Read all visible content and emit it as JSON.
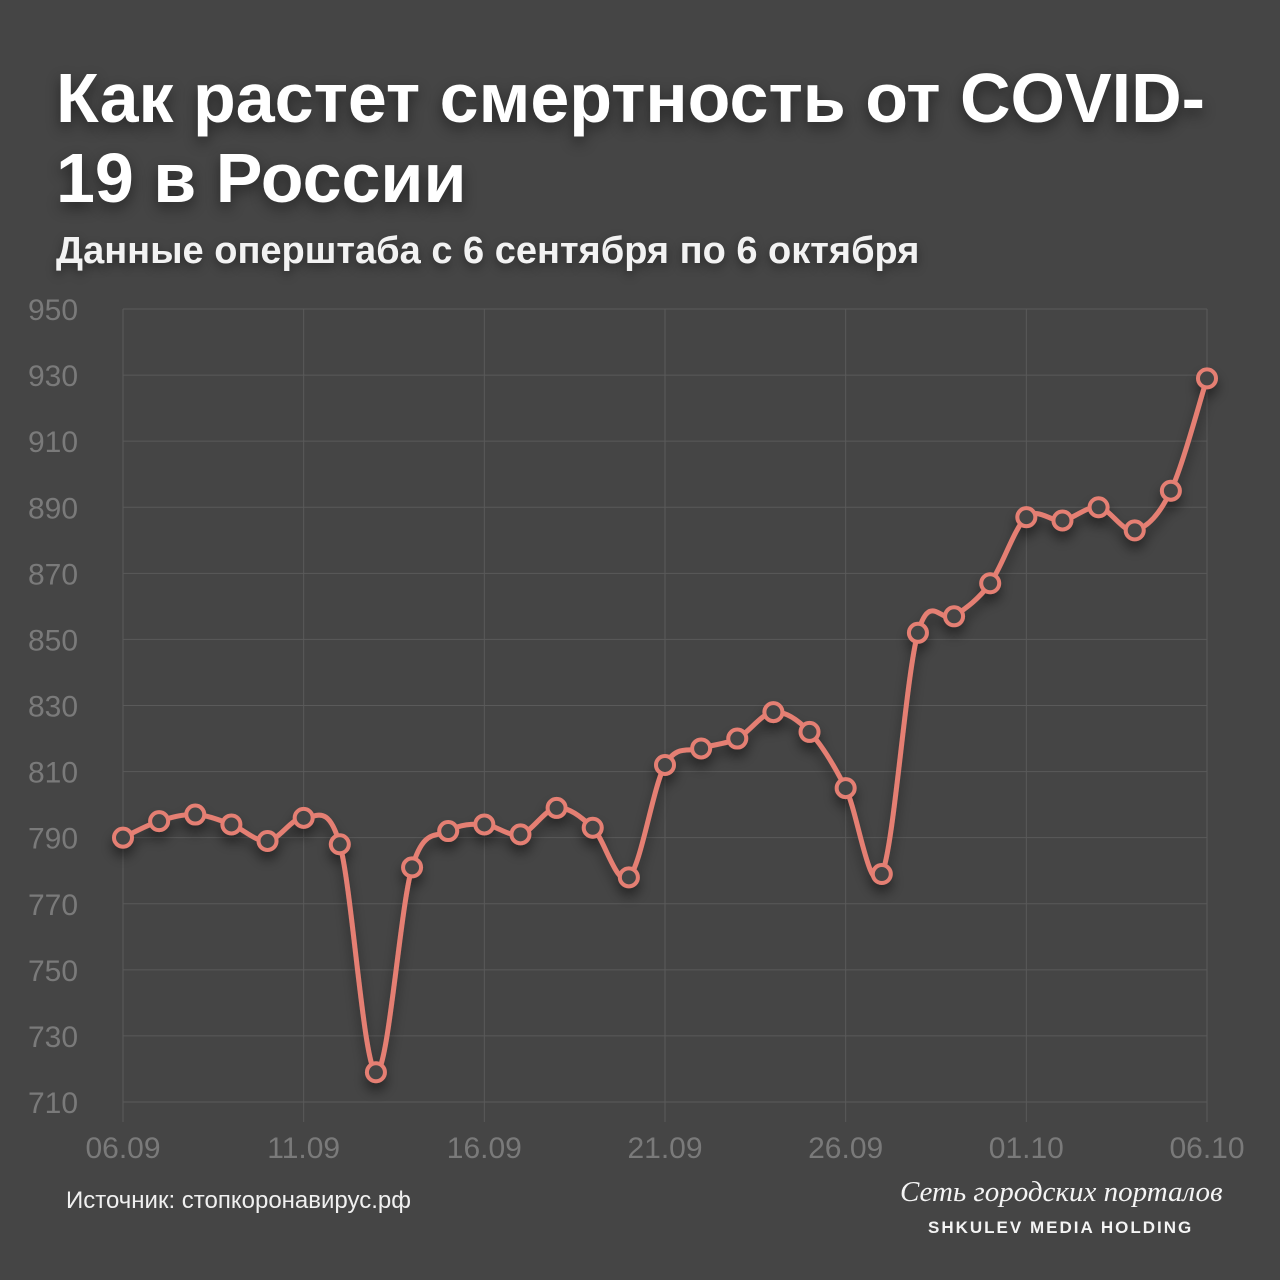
{
  "header": {
    "title": "Как растет смертность от COVID-19 в России",
    "subtitle": "Данные оперштаба с 6 сентября по 6 октября"
  },
  "footer": {
    "source": "Источник: стопкоронавирус.рф",
    "brand_script": "Сеть городских порталов",
    "brand_holding": "SHKULEV MEDIA HOLDING"
  },
  "colors": {
    "background": "#454545",
    "line": "#e57f73",
    "grid": "#5a5a5a",
    "tick_text": "#7a7a7a"
  },
  "chart_data": {
    "type": "line",
    "title": "Как растет смертность от COVID-19 в России",
    "subtitle": "Данные оперштаба с 6 сентября по 6 октября",
    "xlabel": "",
    "ylabel": "",
    "x_ticks": [
      "06.09",
      "11.09",
      "16.09",
      "21.09",
      "26.09",
      "01.10",
      "06.10"
    ],
    "y_ticks": [
      950,
      930,
      910,
      890,
      870,
      850,
      830,
      810,
      790,
      770,
      750,
      730,
      710
    ],
    "ylim": [
      710,
      950
    ],
    "grid": true,
    "legend": "none",
    "series": [
      {
        "x": [
          "06.09",
          "07.09",
          "08.09",
          "09.09",
          "10.09",
          "11.09",
          "12.09",
          "13.09",
          "14.09",
          "15.09",
          "16.09",
          "17.09",
          "18.09",
          "19.09",
          "20.09",
          "21.09",
          "22.09",
          "23.09",
          "24.09",
          "25.09",
          "26.09",
          "27.09",
          "28.09",
          "29.09",
          "30.09",
          "01.10",
          "02.10",
          "03.10",
          "04.10",
          "05.10",
          "06.10"
        ],
        "values": [
          790,
          795,
          797,
          794,
          789,
          796,
          788,
          719,
          781,
          792,
          794,
          791,
          799,
          793,
          778,
          812,
          817,
          820,
          828,
          822,
          805,
          779,
          852,
          857,
          867,
          887,
          886,
          890,
          883,
          895,
          929
        ]
      }
    ]
  }
}
